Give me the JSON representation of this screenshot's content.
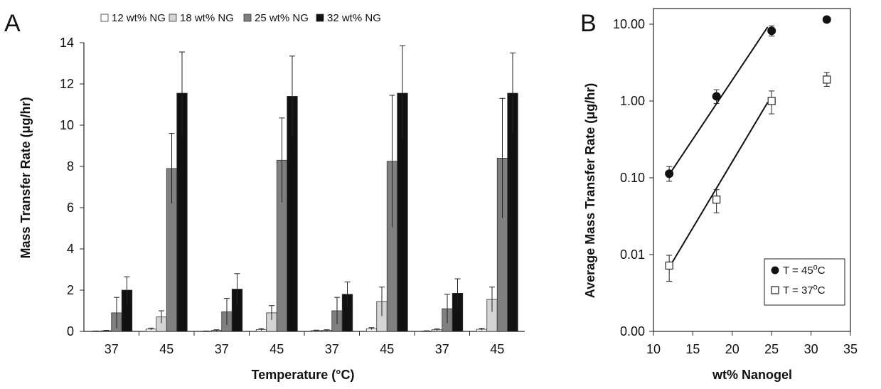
{
  "panels": {
    "a_letter": "A",
    "b_letter": "B"
  },
  "colors": {
    "s12": "#ffffff",
    "s18": "#d4d4d4",
    "s25": "#808080",
    "s32": "#111111"
  },
  "chart_data": [
    {
      "type": "bar",
      "panel": "A",
      "xlabel": "Temperature (°C)",
      "ylabel": "Mass Transfer Rate (μg/hr)",
      "ylim": [
        0,
        14
      ],
      "yticks": [
        0,
        2,
        4,
        6,
        8,
        10,
        12,
        14
      ],
      "grid": false,
      "legend_position": "top",
      "categories": [
        "37",
        "45",
        "37",
        "45",
        "37",
        "45",
        "37",
        "45"
      ],
      "series": [
        {
          "name": "12 wt% NG",
          "values": [
            0.01,
            0.11,
            0.01,
            0.09,
            0.04,
            0.13,
            0.02,
            0.1
          ],
          "errors": [
            0.01,
            0.05,
            0.01,
            0.05,
            0.02,
            0.05,
            0.01,
            0.05
          ]
        },
        {
          "name": "18 wt% NG",
          "values": [
            0.03,
            0.7,
            0.05,
            0.9,
            0.05,
            1.45,
            0.08,
            1.55
          ],
          "errors": [
            0.02,
            0.3,
            0.03,
            0.35,
            0.03,
            0.7,
            0.04,
            0.6
          ]
        },
        {
          "name": "25 wt% NG",
          "values": [
            0.9,
            7.9,
            0.95,
            8.3,
            1.0,
            8.25,
            1.1,
            8.4
          ],
          "errors": [
            0.75,
            1.7,
            0.65,
            2.05,
            0.65,
            3.2,
            0.7,
            2.9
          ]
        },
        {
          "name": "32 wt% NG",
          "values": [
            2.0,
            11.55,
            2.05,
            11.4,
            1.8,
            11.55,
            1.85,
            11.55
          ],
          "errors": [
            0.65,
            2.0,
            0.75,
            1.95,
            0.6,
            2.3,
            0.7,
            1.95
          ]
        }
      ]
    },
    {
      "type": "scatter",
      "panel": "B",
      "xlabel": "wt% Nanogel",
      "ylabel": "Average Mass Transfer Rate (μg/hr)",
      "xlim": [
        10,
        35
      ],
      "xticks": [
        10,
        15,
        20,
        25,
        30,
        35
      ],
      "y_scale": "log",
      "ylim": [
        0.001,
        10
      ],
      "yticks": [
        0.001,
        0.01,
        0.1,
        1,
        10
      ],
      "ytick_labels": [
        "0.00",
        "0.01",
        "0.10",
        "1.00",
        "10.00"
      ],
      "grid": false,
      "legend_position": "bottom-right",
      "series": [
        {
          "name": "T = 45",
          "sup": "o",
          "name_end": "C",
          "marker": "filled-circle",
          "x": [
            12,
            18,
            25,
            32
          ],
          "y": [
            0.113,
            1.15,
            8.2,
            11.5
          ],
          "yerr_low": [
            0.09,
            0.93,
            7.0,
            11.5
          ],
          "yerr_high": [
            0.14,
            1.4,
            9.5,
            11.5
          ],
          "fit_x": [
            12,
            24.5
          ],
          "fit_y": [
            0.11,
            9.2
          ]
        },
        {
          "name": "T = 37",
          "sup": "o",
          "name_end": "C",
          "marker": "open-square",
          "x": [
            12,
            18,
            25,
            32
          ],
          "y": [
            0.0072,
            0.052,
            1.0,
            1.9
          ],
          "yerr_low": [
            0.0045,
            0.035,
            0.68,
            1.55
          ],
          "yerr_high": [
            0.0098,
            0.07,
            1.35,
            2.35
          ],
          "fit_x": [
            12,
            24.5
          ],
          "fit_y": [
            0.0068,
            0.96
          ]
        }
      ]
    }
  ]
}
